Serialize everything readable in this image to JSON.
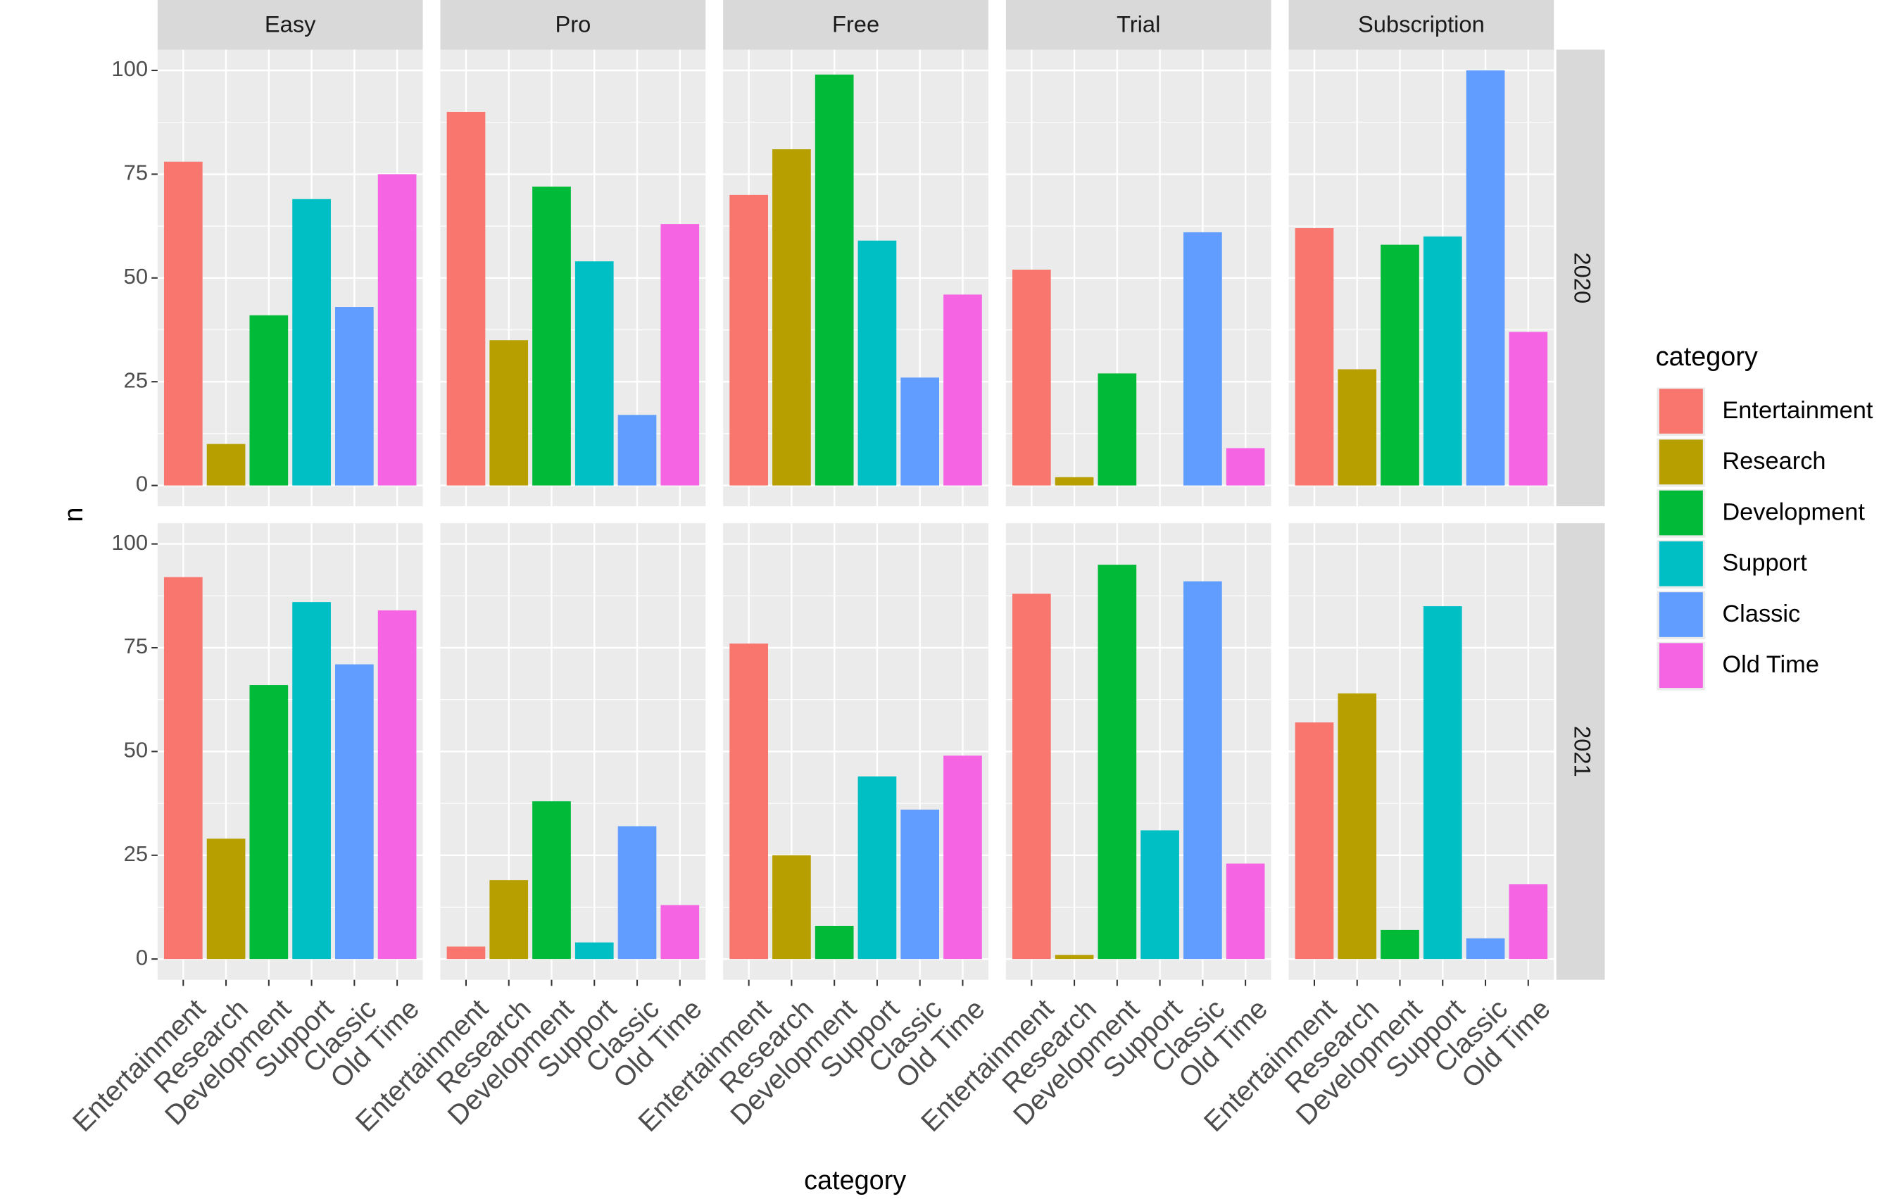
{
  "chart_data": {
    "type": "bar",
    "x_label": "category",
    "y_label": "n",
    "legend_title": "category",
    "categories": [
      "Entertainment",
      "Research",
      "Development",
      "Support",
      "Classic",
      "Old Time"
    ],
    "colors": [
      "#f8766d",
      "#b79f00",
      "#00ba38",
      "#00bfc4",
      "#619cff",
      "#f564e3"
    ],
    "columns": [
      "Easy",
      "Pro",
      "Free",
      "Trial",
      "Subscription"
    ],
    "rows": [
      "2020",
      "2021"
    ],
    "values": [
      [
        [
          78,
          10,
          41,
          69,
          43,
          75
        ],
        [
          90,
          35,
          72,
          54,
          17,
          63
        ],
        [
          70,
          81,
          99,
          59,
          26,
          46
        ],
        [
          52,
          2,
          27,
          0,
          61,
          9
        ],
        [
          62,
          28,
          58,
          60,
          100,
          37
        ]
      ],
      [
        [
          92,
          29,
          66,
          86,
          71,
          84
        ],
        [
          3,
          19,
          38,
          4,
          32,
          13
        ],
        [
          76,
          25,
          8,
          44,
          36,
          49
        ],
        [
          88,
          1,
          95,
          31,
          91,
          23
        ],
        [
          57,
          64,
          7,
          85,
          5,
          18
        ]
      ]
    ],
    "ylim": [
      -5,
      105
    ],
    "yticks": [
      0,
      25,
      50,
      75,
      100
    ],
    "grid": true,
    "legend_position": "right"
  }
}
